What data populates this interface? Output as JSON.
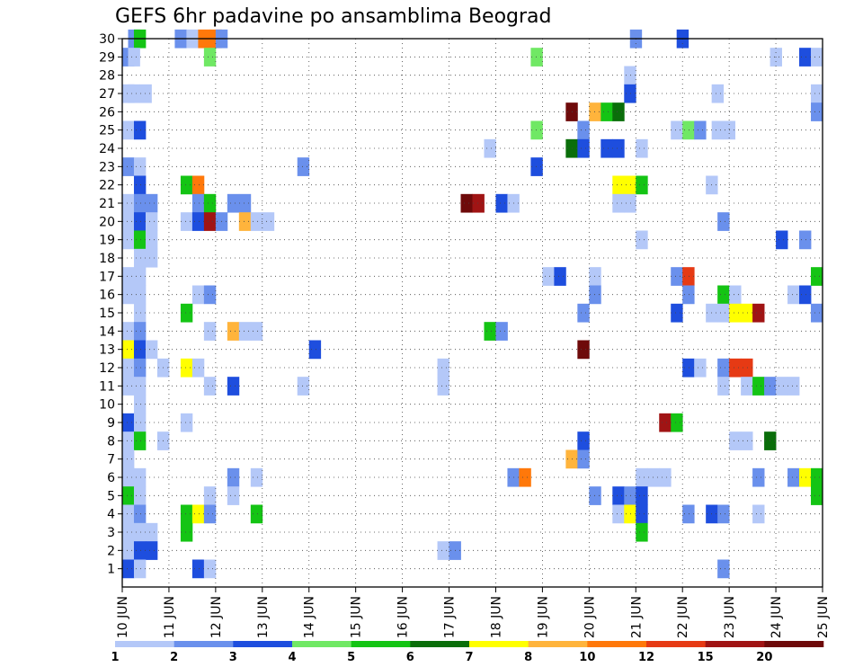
{
  "chart_data": {
    "type": "heatmap",
    "title": "GEFS 6hr padavine po ansamblima Beograd",
    "xlabel": "",
    "ylabel": "",
    "x_tick_labels": [
      "10 JUN",
      "11 JUN",
      "12 JUN",
      "13 JUN",
      "14 JUN",
      "15 JUN",
      "16 JUN",
      "17 JUN",
      "18 JUN",
      "19 JUN",
      "20 JUN",
      "21 JUN",
      "22 JUN",
      "23 JUN",
      "24 JUN",
      "25 JUN"
    ],
    "x_range_days": [
      10,
      25
    ],
    "y_tick_labels": [
      "1",
      "2",
      "3",
      "4",
      "5",
      "6",
      "7",
      "8",
      "9",
      "10",
      "11",
      "12",
      "13",
      "14",
      "15",
      "16",
      "17",
      "18",
      "19",
      "20",
      "21",
      "22",
      "23",
      "24",
      "25",
      "26",
      "27",
      "28",
      "29",
      "30"
    ],
    "y_range": [
      0,
      30
    ],
    "grid": "dotted",
    "colorbar": {
      "labels": [
        "1",
        "2",
        "3",
        "4",
        "5",
        "6",
        "7",
        "8",
        "10",
        "12",
        "15",
        "20"
      ],
      "colors": [
        "#b4c8f8",
        "#6a90ec",
        "#1e4ede",
        "#70e864",
        "#14c414",
        "#0a6e0a",
        "#ffff00",
        "#ffb43c",
        "#ff780a",
        "#e63a14",
        "#a01414",
        "#6e0a0a"
      ]
    },
    "cells": [
      [
        30,
        10.25,
        2
      ],
      [
        30,
        10.375,
        5
      ],
      [
        30,
        11.25,
        2
      ],
      [
        30,
        11.5,
        1
      ],
      [
        30,
        11.75,
        10
      ],
      [
        30,
        12,
        10
      ],
      [
        30,
        12.125,
        2
      ],
      [
        30,
        21,
        2
      ],
      [
        30,
        22,
        3
      ],
      [
        29,
        10.125,
        2
      ],
      [
        29,
        10.25,
        1
      ],
      [
        29,
        11.875,
        4
      ],
      [
        29,
        18.875,
        4
      ],
      [
        29,
        24,
        1
      ],
      [
        29,
        24.625,
        3
      ],
      [
        29,
        24.875,
        1
      ],
      [
        28,
        20.875,
        1
      ],
      [
        27,
        10.125,
        1
      ],
      [
        27,
        10.25,
        1
      ],
      [
        27,
        10.5,
        1
      ],
      [
        27,
        20.875,
        3
      ],
      [
        27,
        22.75,
        1
      ],
      [
        27,
        24.875,
        1
      ],
      [
        26,
        19.625,
        20
      ],
      [
        26,
        20.125,
        8
      ],
      [
        26,
        20.375,
        5
      ],
      [
        26,
        20.625,
        6
      ],
      [
        26,
        24.875,
        2
      ],
      [
        25,
        10.125,
        1
      ],
      [
        25,
        10.375,
        3
      ],
      [
        25,
        18.875,
        4
      ],
      [
        25,
        19.875,
        2
      ],
      [
        25,
        21.875,
        1
      ],
      [
        25,
        22.125,
        4
      ],
      [
        25,
        22.375,
        2
      ],
      [
        25,
        22.75,
        1
      ],
      [
        25,
        23,
        1
      ],
      [
        24,
        17.875,
        1
      ],
      [
        24,
        19.625,
        6
      ],
      [
        24,
        19.875,
        3
      ],
      [
        24,
        20.375,
        3
      ],
      [
        24,
        20.625,
        3
      ],
      [
        24,
        21.125,
        1
      ],
      [
        23,
        10.125,
        2
      ],
      [
        23,
        10.375,
        1
      ],
      [
        23,
        13.875,
        2
      ],
      [
        23,
        18.875,
        3
      ],
      [
        22,
        10.375,
        3
      ],
      [
        22,
        11.375,
        5
      ],
      [
        22,
        11.625,
        10
      ],
      [
        22,
        20.625,
        7
      ],
      [
        22,
        20.875,
        7
      ],
      [
        22,
        21.125,
        5
      ],
      [
        22,
        22.625,
        1
      ],
      [
        21,
        10.125,
        1
      ],
      [
        21,
        10.375,
        2
      ],
      [
        21,
        10.625,
        2
      ],
      [
        21,
        11.625,
        2
      ],
      [
        21,
        11.875,
        5
      ],
      [
        21,
        12.375,
        2
      ],
      [
        21,
        12.625,
        2
      ],
      [
        21,
        17.375,
        20
      ],
      [
        21,
        17.625,
        15
      ],
      [
        21,
        18.125,
        3
      ],
      [
        21,
        18.375,
        1
      ],
      [
        21,
        20.625,
        1
      ],
      [
        21,
        20.875,
        1
      ],
      [
        20,
        10.125,
        1
      ],
      [
        20,
        10.375,
        3
      ],
      [
        20,
        10.625,
        1
      ],
      [
        20,
        11.375,
        1
      ],
      [
        20,
        11.625,
        3
      ],
      [
        20,
        11.875,
        15
      ],
      [
        20,
        12.125,
        2
      ],
      [
        20,
        12.625,
        8
      ],
      [
        20,
        12.875,
        1
      ],
      [
        20,
        13.125,
        1
      ],
      [
        20,
        22.875,
        2
      ],
      [
        19,
        10.125,
        1
      ],
      [
        19,
        10.375,
        5
      ],
      [
        19,
        10.625,
        1
      ],
      [
        19,
        21.125,
        1
      ],
      [
        19,
        24.125,
        3
      ],
      [
        19,
        24.625,
        2
      ],
      [
        18,
        10.375,
        1
      ],
      [
        18,
        10.625,
        1
      ],
      [
        17,
        10.125,
        1
      ],
      [
        17,
        10.375,
        1
      ],
      [
        17,
        19.125,
        1
      ],
      [
        17,
        19.375,
        3
      ],
      [
        17,
        20.125,
        1
      ],
      [
        17,
        21.875,
        2
      ],
      [
        17,
        22.125,
        12
      ],
      [
        17,
        24.875,
        5
      ],
      [
        16,
        10.125,
        1
      ],
      [
        16,
        10.375,
        1
      ],
      [
        16,
        11.625,
        1
      ],
      [
        16,
        11.875,
        2
      ],
      [
        16,
        20.125,
        2
      ],
      [
        16,
        22.125,
        2
      ],
      [
        16,
        22.875,
        5
      ],
      [
        16,
        23.125,
        1
      ],
      [
        16,
        24.375,
        1
      ],
      [
        16,
        24.625,
        3
      ],
      [
        15,
        10.375,
        1
      ],
      [
        15,
        11.375,
        5
      ],
      [
        15,
        19.875,
        2
      ],
      [
        15,
        21.875,
        3
      ],
      [
        15,
        22.625,
        1
      ],
      [
        15,
        22.875,
        1
      ],
      [
        15,
        23.125,
        7
      ],
      [
        15,
        23.375,
        7
      ],
      [
        15,
        23.625,
        15
      ],
      [
        15,
        24.875,
        2
      ],
      [
        14,
        10.125,
        1
      ],
      [
        14,
        10.375,
        2
      ],
      [
        14,
        11.875,
        1
      ],
      [
        14,
        12.375,
        8
      ],
      [
        14,
        12.625,
        1
      ],
      [
        14,
        12.875,
        1
      ],
      [
        14,
        17.875,
        5
      ],
      [
        14,
        18.125,
        2
      ],
      [
        13,
        10.125,
        7
      ],
      [
        13,
        10.375,
        3
      ],
      [
        13,
        10.625,
        1
      ],
      [
        13,
        14.125,
        3
      ],
      [
        13,
        19.875,
        20
      ],
      [
        12,
        10.125,
        1
      ],
      [
        12,
        10.375,
        2
      ],
      [
        12,
        10.875,
        1
      ],
      [
        12,
        11.375,
        7
      ],
      [
        12,
        11.625,
        1
      ],
      [
        12,
        16.875,
        1
      ],
      [
        12,
        22.125,
        3
      ],
      [
        12,
        22.375,
        1
      ],
      [
        12,
        22.875,
        2
      ],
      [
        12,
        23.125,
        12
      ],
      [
        12,
        23.375,
        12
      ],
      [
        11,
        10.125,
        1
      ],
      [
        11,
        10.375,
        1
      ],
      [
        11,
        11.875,
        1
      ],
      [
        11,
        12.375,
        3
      ],
      [
        11,
        13.875,
        1
      ],
      [
        11,
        16.875,
        1
      ],
      [
        11,
        22.875,
        1
      ],
      [
        11,
        23.375,
        1
      ],
      [
        11,
        23.625,
        5
      ],
      [
        11,
        23.875,
        2
      ],
      [
        11,
        24.125,
        1
      ],
      [
        11,
        24.375,
        1
      ],
      [
        10,
        10.375,
        1
      ],
      [
        9,
        10.125,
        3
      ],
      [
        9,
        10.375,
        1
      ],
      [
        9,
        11.375,
        1
      ],
      [
        9,
        21.625,
        15
      ],
      [
        9,
        21.875,
        5
      ],
      [
        8,
        10.125,
        1
      ],
      [
        8,
        10.375,
        5
      ],
      [
        8,
        10.875,
        1
      ],
      [
        8,
        19.875,
        3
      ],
      [
        8,
        23.125,
        1
      ],
      [
        8,
        23.375,
        1
      ],
      [
        8,
        23.875,
        6
      ],
      [
        7,
        10.125,
        1
      ],
      [
        7,
        19.625,
        8
      ],
      [
        7,
        19.875,
        2
      ],
      [
        6,
        10.125,
        1
      ],
      [
        6,
        10.375,
        1
      ],
      [
        6,
        12.375,
        2
      ],
      [
        6,
        12.875,
        1
      ],
      [
        6,
        18.375,
        2
      ],
      [
        6,
        18.625,
        10
      ],
      [
        6,
        21.125,
        1
      ],
      [
        6,
        21.375,
        1
      ],
      [
        6,
        21.625,
        1
      ],
      [
        6,
        23.625,
        2
      ],
      [
        6,
        24.375,
        2
      ],
      [
        6,
        24.625,
        7
      ],
      [
        6,
        24.875,
        5
      ],
      [
        5,
        10.125,
        5
      ],
      [
        5,
        10.375,
        1
      ],
      [
        5,
        11.875,
        1
      ],
      [
        5,
        12.375,
        1
      ],
      [
        5,
        20.125,
        2
      ],
      [
        5,
        20.625,
        3
      ],
      [
        5,
        20.875,
        2
      ],
      [
        5,
        21.125,
        3
      ],
      [
        5,
        24.875,
        5
      ],
      [
        4,
        10.125,
        1
      ],
      [
        4,
        10.375,
        2
      ],
      [
        4,
        11.375,
        5
      ],
      [
        4,
        11.625,
        7
      ],
      [
        4,
        11.875,
        2
      ],
      [
        4,
        12.875,
        5
      ],
      [
        4,
        20.625,
        1
      ],
      [
        4,
        20.875,
        7
      ],
      [
        4,
        21.125,
        3
      ],
      [
        4,
        22.125,
        2
      ],
      [
        4,
        22.625,
        3
      ],
      [
        4,
        22.875,
        2
      ],
      [
        4,
        23.625,
        1
      ],
      [
        3,
        10.125,
        1
      ],
      [
        3,
        10.375,
        1
      ],
      [
        3,
        10.625,
        1
      ],
      [
        3,
        11.375,
        5
      ],
      [
        3,
        21.125,
        5
      ],
      [
        2,
        10.125,
        1
      ],
      [
        2,
        10.375,
        3
      ],
      [
        2,
        10.625,
        3
      ],
      [
        2,
        16.875,
        1
      ],
      [
        2,
        17.125,
        2
      ],
      [
        1,
        10.125,
        3
      ],
      [
        1,
        10.375,
        1
      ],
      [
        1,
        11.625,
        3
      ],
      [
        1,
        11.875,
        1
      ],
      [
        1,
        22.875,
        2
      ]
    ]
  }
}
